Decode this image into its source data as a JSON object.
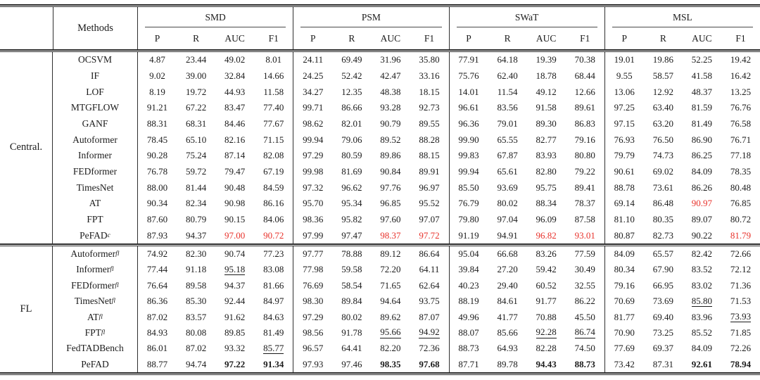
{
  "table": {
    "methods_header": "Methods",
    "datasets": [
      "SMD",
      "PSM",
      "SWaT",
      "MSL"
    ],
    "metrics": [
      "P",
      "R",
      "AUC",
      "F1"
    ],
    "colors": {
      "highlight_red": "#e8322b",
      "text": "#1b1b1b",
      "rule": "#2a2a2a"
    },
    "groups": [
      {
        "label": "Central.",
        "rows": [
          {
            "method": "OCSVM",
            "sub": "",
            "values": [
              "4.87",
              "23.44",
              "49.02",
              "8.01",
              "24.11",
              "69.49",
              "31.96",
              "35.80",
              "77.91",
              "64.18",
              "19.39",
              "70.38",
              "19.01",
              "19.86",
              "52.25",
              "19.42"
            ]
          },
          {
            "method": "IF",
            "sub": "",
            "values": [
              "9.02",
              "39.00",
              "32.84",
              "14.66",
              "24.25",
              "52.42",
              "42.47",
              "33.16",
              "75.76",
              "62.40",
              "18.78",
              "68.44",
              "9.55",
              "58.57",
              "41.58",
              "16.42"
            ]
          },
          {
            "method": "LOF",
            "sub": "",
            "values": [
              "8.19",
              "19.72",
              "44.93",
              "11.58",
              "34.27",
              "12.35",
              "48.38",
              "18.15",
              "14.01",
              "11.54",
              "49.12",
              "12.66",
              "13.06",
              "12.92",
              "48.37",
              "13.25"
            ]
          },
          {
            "method": "MTGFLOW",
            "sub": "",
            "values": [
              "91.21",
              "67.22",
              "83.47",
              "77.40",
              "99.71",
              "86.66",
              "93.28",
              "92.73",
              "96.61",
              "83.56",
              "91.58",
              "89.61",
              "97.25",
              "63.40",
              "81.59",
              "76.76"
            ]
          },
          {
            "method": "GANF",
            "sub": "",
            "values": [
              "88.31",
              "68.31",
              "84.46",
              "77.67",
              "98.62",
              "82.01",
              "90.79",
              "89.55",
              "96.36",
              "79.01",
              "89.30",
              "86.83",
              "97.15",
              "63.20",
              "81.49",
              "76.58"
            ]
          },
          {
            "method": "Autoformer",
            "sub": "",
            "values": [
              "78.45",
              "65.10",
              "82.16",
              "71.15",
              "99.94",
              "79.06",
              "89.52",
              "88.28",
              "99.90",
              "65.55",
              "82.77",
              "79.16",
              "76.93",
              "76.50",
              "86.90",
              "76.71"
            ]
          },
          {
            "method": "Informer",
            "sub": "",
            "values": [
              "90.28",
              "75.24",
              "87.14",
              "82.08",
              "97.29",
              "80.59",
              "89.86",
              "88.15",
              "99.83",
              "67.87",
              "83.93",
              "80.80",
              "79.79",
              "74.73",
              "86.25",
              "77.18"
            ]
          },
          {
            "method": "FEDformer",
            "sub": "",
            "values": [
              "76.78",
              "59.72",
              "79.47",
              "67.19",
              "99.98",
              "81.69",
              "90.84",
              "89.91",
              "99.94",
              "65.61",
              "82.80",
              "79.22",
              "90.61",
              "69.02",
              "84.09",
              "78.35"
            ]
          },
          {
            "method": "TimesNet",
            "sub": "",
            "values": [
              "88.00",
              "81.44",
              "90.48",
              "84.59",
              "97.32",
              "96.62",
              "97.76",
              "96.97",
              "85.50",
              "93.69",
              "95.75",
              "89.41",
              "88.78",
              "73.61",
              "86.26",
              "80.48"
            ]
          },
          {
            "method": "AT",
            "sub": "",
            "values": [
              "90.34",
              "82.34",
              "90.98",
              "86.16",
              "95.70",
              "95.34",
              "96.85",
              "95.52",
              "76.79",
              "80.02",
              "88.34",
              "78.37",
              "69.14",
              "86.48",
              "90.97",
              "76.85"
            ],
            "red": [
              14
            ]
          },
          {
            "method": "FPT",
            "sub": "",
            "values": [
              "87.60",
              "80.79",
              "90.15",
              "84.06",
              "98.36",
              "95.82",
              "97.60",
              "97.07",
              "79.80",
              "97.04",
              "96.09",
              "87.58",
              "81.10",
              "80.35",
              "89.07",
              "80.72"
            ]
          },
          {
            "method": "PeFAD",
            "sub": "c",
            "values": [
              "87.93",
              "94.37",
              "97.00",
              "90.72",
              "97.99",
              "97.47",
              "98.37",
              "97.72",
              "91.19",
              "94.91",
              "96.82",
              "93.01",
              "80.87",
              "82.73",
              "90.22",
              "81.79"
            ],
            "red": [
              2,
              3,
              6,
              7,
              10,
              11,
              15
            ]
          }
        ]
      },
      {
        "label": "FL",
        "rows": [
          {
            "method": "Autoformer",
            "sub": "fl",
            "values": [
              "74.92",
              "82.30",
              "90.74",
              "77.23",
              "97.77",
              "78.88",
              "89.12",
              "86.64",
              "95.04",
              "66.68",
              "83.26",
              "77.59",
              "84.09",
              "65.57",
              "82.42",
              "72.66"
            ]
          },
          {
            "method": "Informer",
            "sub": "fl",
            "values": [
              "77.44",
              "91.18",
              "95.18",
              "83.08",
              "77.98",
              "59.58",
              "72.20",
              "64.11",
              "39.84",
              "27.20",
              "59.42",
              "30.49",
              "80.34",
              "67.90",
              "83.52",
              "72.12"
            ],
            "underline": [
              2
            ]
          },
          {
            "method": "FEDformer",
            "sub": "fl",
            "values": [
              "76.64",
              "89.58",
              "94.37",
              "81.66",
              "76.69",
              "58.54",
              "71.65",
              "62.64",
              "40.23",
              "29.40",
              "60.52",
              "32.55",
              "79.16",
              "66.95",
              "83.02",
              "71.36"
            ]
          },
          {
            "method": "TimesNet",
            "sub": "fl",
            "values": [
              "86.36",
              "85.30",
              "92.44",
              "84.97",
              "98.30",
              "89.84",
              "94.64",
              "93.75",
              "88.19",
              "84.61",
              "91.77",
              "86.22",
              "70.69",
              "73.69",
              "85.80",
              "71.53"
            ],
            "underline": [
              14
            ]
          },
          {
            "method": "AT",
            "sub": "fl",
            "values": [
              "87.02",
              "83.57",
              "91.62",
              "84.63",
              "97.29",
              "80.02",
              "89.62",
              "87.07",
              "49.96",
              "41.77",
              "70.88",
              "45.50",
              "81.77",
              "69.40",
              "83.96",
              "73.93"
            ],
            "underline": [
              15
            ]
          },
          {
            "method": "FPT",
            "sub": "fl",
            "values": [
              "84.93",
              "80.08",
              "89.85",
              "81.49",
              "98.56",
              "91.78",
              "95.66",
              "94.92",
              "88.07",
              "85.66",
              "92.28",
              "86.74",
              "70.90",
              "73.25",
              "85.52",
              "71.85"
            ],
            "underline": [
              6,
              7,
              10,
              11
            ]
          },
          {
            "method": "FedTADBench",
            "sub": "",
            "values": [
              "86.01",
              "87.02",
              "93.32",
              "85.77",
              "96.57",
              "64.41",
              "82.20",
              "72.36",
              "88.73",
              "64.93",
              "82.28",
              "74.50",
              "77.69",
              "69.37",
              "84.09",
              "72.26"
            ],
            "underline": [
              3
            ]
          },
          {
            "method": "PeFAD",
            "sub": "",
            "values": [
              "88.77",
              "94.74",
              "97.22",
              "91.34",
              "97.93",
              "97.46",
              "98.35",
              "97.68",
              "87.71",
              "89.78",
              "94.43",
              "88.73",
              "73.42",
              "87.31",
              "92.61",
              "78.94"
            ],
            "bold": [
              2,
              3,
              6,
              7,
              10,
              11,
              14,
              15
            ]
          }
        ]
      }
    ]
  }
}
